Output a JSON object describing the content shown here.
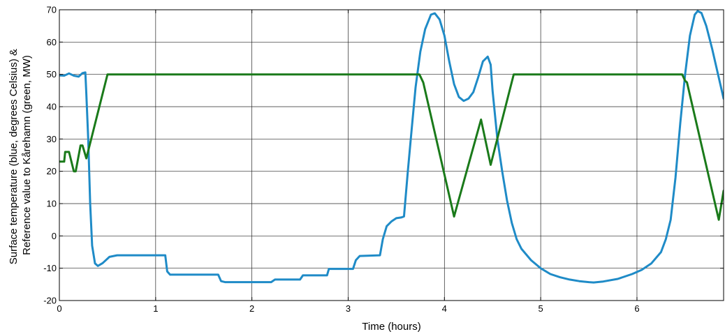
{
  "chart_data": {
    "type": "line",
    "title": "",
    "xlabel": "Time (hours)",
    "ylabel_lines": [
      "Surface temperature (blue, degrees Celsius) &",
      "Reference value to Kårehamn (green, MW)"
    ],
    "xlim": [
      0,
      6.9
    ],
    "ylim": [
      -20,
      70
    ],
    "xticks": [
      0,
      1,
      2,
      3,
      4,
      5,
      6
    ],
    "yticks": [
      -20,
      -10,
      0,
      10,
      20,
      30,
      40,
      50,
      60,
      70
    ],
    "grid": true,
    "colors": {
      "temperature": "#1f8bc7",
      "reference": "#1a7a1a"
    },
    "series": [
      {
        "key": "temperature",
        "points": [
          [
            0.0,
            49.7
          ],
          [
            0.05,
            49.6
          ],
          [
            0.1,
            50.3
          ],
          [
            0.15,
            49.6
          ],
          [
            0.2,
            49.3
          ],
          [
            0.24,
            50.4
          ],
          [
            0.27,
            50.6
          ],
          [
            0.28,
            44.0
          ],
          [
            0.3,
            30.0
          ],
          [
            0.32,
            10.0
          ],
          [
            0.34,
            -3.0
          ],
          [
            0.37,
            -8.5
          ],
          [
            0.4,
            -9.3
          ],
          [
            0.45,
            -8.4
          ],
          [
            0.52,
            -6.5
          ],
          [
            0.6,
            -6.0
          ],
          [
            1.1,
            -6.0
          ],
          [
            1.12,
            -11.0
          ],
          [
            1.15,
            -12.0
          ],
          [
            1.65,
            -12.0
          ],
          [
            1.68,
            -14.0
          ],
          [
            1.72,
            -14.3
          ],
          [
            2.2,
            -14.3
          ],
          [
            2.24,
            -13.5
          ],
          [
            2.5,
            -13.5
          ],
          [
            2.53,
            -12.2
          ],
          [
            2.78,
            -12.2
          ],
          [
            2.8,
            -10.2
          ],
          [
            3.05,
            -10.2
          ],
          [
            3.08,
            -7.5
          ],
          [
            3.12,
            -6.2
          ],
          [
            3.33,
            -6.0
          ],
          [
            3.36,
            -1.0
          ],
          [
            3.4,
            3.0
          ],
          [
            3.45,
            4.5
          ],
          [
            3.5,
            5.5
          ],
          [
            3.55,
            5.7
          ],
          [
            3.58,
            6.0
          ],
          [
            3.62,
            20.0
          ],
          [
            3.66,
            33.0
          ],
          [
            3.7,
            46.0
          ],
          [
            3.75,
            57.0
          ],
          [
            3.8,
            64.0
          ],
          [
            3.86,
            68.5
          ],
          [
            3.9,
            68.9
          ],
          [
            3.95,
            67.0
          ],
          [
            4.0,
            62.0
          ],
          [
            4.05,
            54.0
          ],
          [
            4.1,
            47.0
          ],
          [
            4.15,
            43.0
          ],
          [
            4.2,
            41.8
          ],
          [
            4.25,
            42.5
          ],
          [
            4.3,
            44.5
          ],
          [
            4.35,
            49.0
          ],
          [
            4.4,
            54.0
          ],
          [
            4.45,
            55.5
          ],
          [
            4.48,
            53.0
          ],
          [
            4.5,
            45.0
          ],
          [
            4.55,
            30.0
          ],
          [
            4.6,
            20.0
          ],
          [
            4.65,
            11.0
          ],
          [
            4.7,
            4.0
          ],
          [
            4.75,
            -1.0
          ],
          [
            4.8,
            -4.0
          ],
          [
            4.9,
            -7.5
          ],
          [
            5.0,
            -10.0
          ],
          [
            5.1,
            -11.8
          ],
          [
            5.2,
            -12.8
          ],
          [
            5.3,
            -13.5
          ],
          [
            5.4,
            -14.0
          ],
          [
            5.5,
            -14.3
          ],
          [
            5.55,
            -14.4
          ],
          [
            5.65,
            -14.1
          ],
          [
            5.8,
            -13.3
          ],
          [
            5.95,
            -11.8
          ],
          [
            6.05,
            -10.5
          ],
          [
            6.15,
            -8.5
          ],
          [
            6.25,
            -5.0
          ],
          [
            6.3,
            -1.0
          ],
          [
            6.35,
            5.0
          ],
          [
            6.4,
            18.0
          ],
          [
            6.45,
            35.0
          ],
          [
            6.5,
            50.0
          ],
          [
            6.55,
            62.0
          ],
          [
            6.6,
            68.5
          ],
          [
            6.63,
            69.6
          ],
          [
            6.67,
            69.0
          ],
          [
            6.72,
            65.0
          ],
          [
            6.78,
            58.0
          ],
          [
            6.85,
            49.0
          ],
          [
            6.9,
            42.5
          ]
        ]
      },
      {
        "key": "reference",
        "points": [
          [
            0.0,
            23.0
          ],
          [
            0.05,
            23.0
          ],
          [
            0.06,
            26.0
          ],
          [
            0.1,
            26.0
          ],
          [
            0.15,
            20.0
          ],
          [
            0.17,
            20.0
          ],
          [
            0.22,
            28.0
          ],
          [
            0.24,
            28.0
          ],
          [
            0.28,
            24.0
          ],
          [
            0.5,
            50.0
          ],
          [
            3.74,
            50.0
          ],
          [
            3.78,
            47.5
          ],
          [
            4.1,
            6.0
          ],
          [
            4.38,
            36.0
          ],
          [
            4.48,
            22.0
          ],
          [
            4.72,
            50.0
          ],
          [
            6.47,
            50.0
          ],
          [
            6.5,
            48.0
          ],
          [
            6.52,
            47.5
          ],
          [
            6.85,
            5.0
          ],
          [
            6.9,
            14.0
          ]
        ]
      }
    ]
  }
}
